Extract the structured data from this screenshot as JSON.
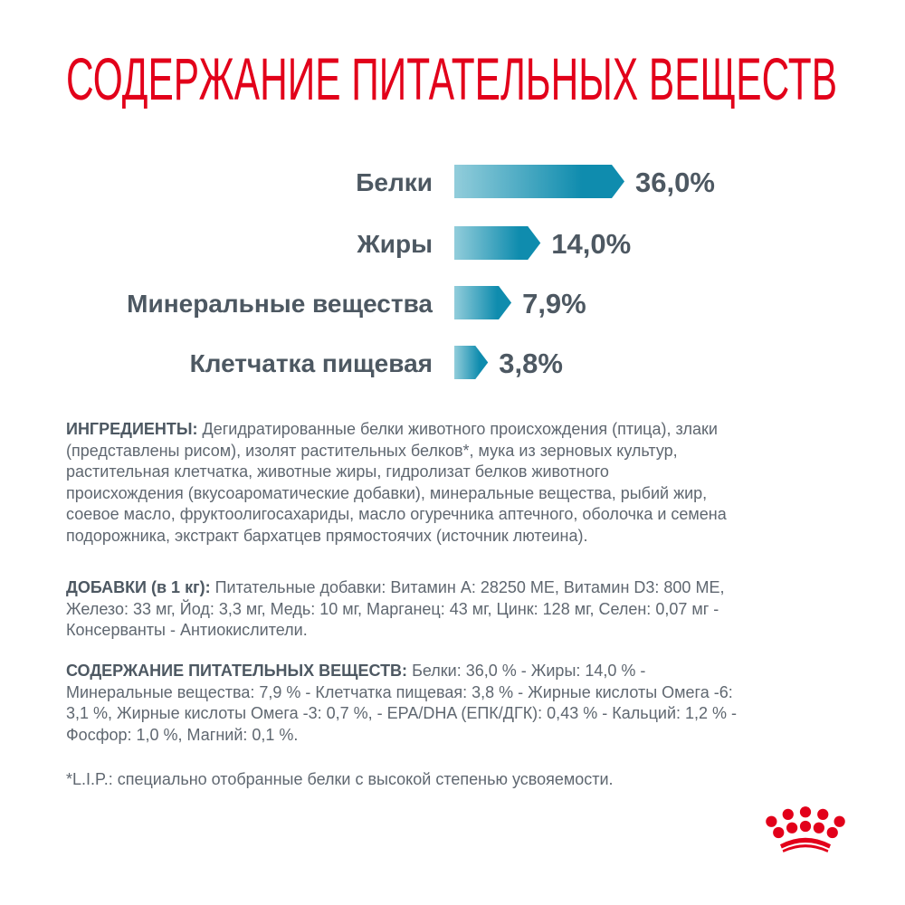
{
  "title": "СОДЕРЖАНИЕ ПИТАТЕЛЬНЫХ ВЕЩЕСТВ",
  "colors": {
    "title": "#e2001a",
    "bar_start": "#92cddb",
    "bar_end": "#0f8cae",
    "text": "#5f6770",
    "label": "#4d5862",
    "logo": "#e2001a"
  },
  "chart_data": {
    "type": "bar",
    "orientation": "horizontal",
    "categories": [
      "Белки",
      "Жиры",
      "Минеральные вещества",
      "Клетчатка пищевая"
    ],
    "values": [
      36.0,
      14.0,
      7.9,
      3.8
    ],
    "data_labels": [
      "36,0%",
      "14,0%",
      "7,9%",
      "3,8%"
    ],
    "unit": "%",
    "grid": false
  },
  "paragraphs": [
    {
      "label": "ИНГРЕДИЕНТЫ:",
      "lines": [
        " Дегидратированные белки животного происхождения (птица), злаки",
        "(представлены рисом), изолят растительных белков*, мука из зерновых культур,",
        "растительная клетчатка, животные жиры, гидролизат белков животного",
        "происхождения (вкусоароматические добавки), минеральные вещества, рыбий жир,",
        "соевое масло, фруктоолигосахариды, масло огуречника аптечного, оболочка и семена",
        "подорожника, экстракт бархатцев прямостоячих (источник лютеина)."
      ]
    },
    {
      "label": "ДОБАВКИ (в 1 кг):",
      "lines": [
        " Питательные добавки: Витамин А: 28250 МЕ, Витамин D3: 800 МЕ,",
        "Железо: 33 мг, Йод: 3,3 мг, Медь: 10 мг, Марганец: 43 мг, Цинк: 128 мг, Селен: 0,07 мг -",
        "Консерванты - Антиокислители."
      ]
    },
    {
      "label": "СОДЕРЖАНИЕ ПИТАТЕЛЬНЫХ ВЕЩЕСТВ:",
      "lines": [
        " Белки: 36,0 % - Жиры: 14,0 % -",
        "Минеральные вещества: 7,9 % - Клетчатка пищевая: 3,8 % - Жирные кислоты Омега -6:",
        "3,1 %, Жирные кислоты Омега -3: 0,7 %, - EPA/DHA (ЕПК/ДГК): 0,43 % - Кальций: 1,2 % -",
        "Фосфор: 1,0 %, Магний: 0,1 %."
      ]
    },
    {
      "label": "",
      "lines": [
        "*L.I.P.: специально отобранные белки с высокой степенью усвояемости."
      ]
    }
  ],
  "logo": {
    "icon": "royal-canin-crown-icon"
  }
}
